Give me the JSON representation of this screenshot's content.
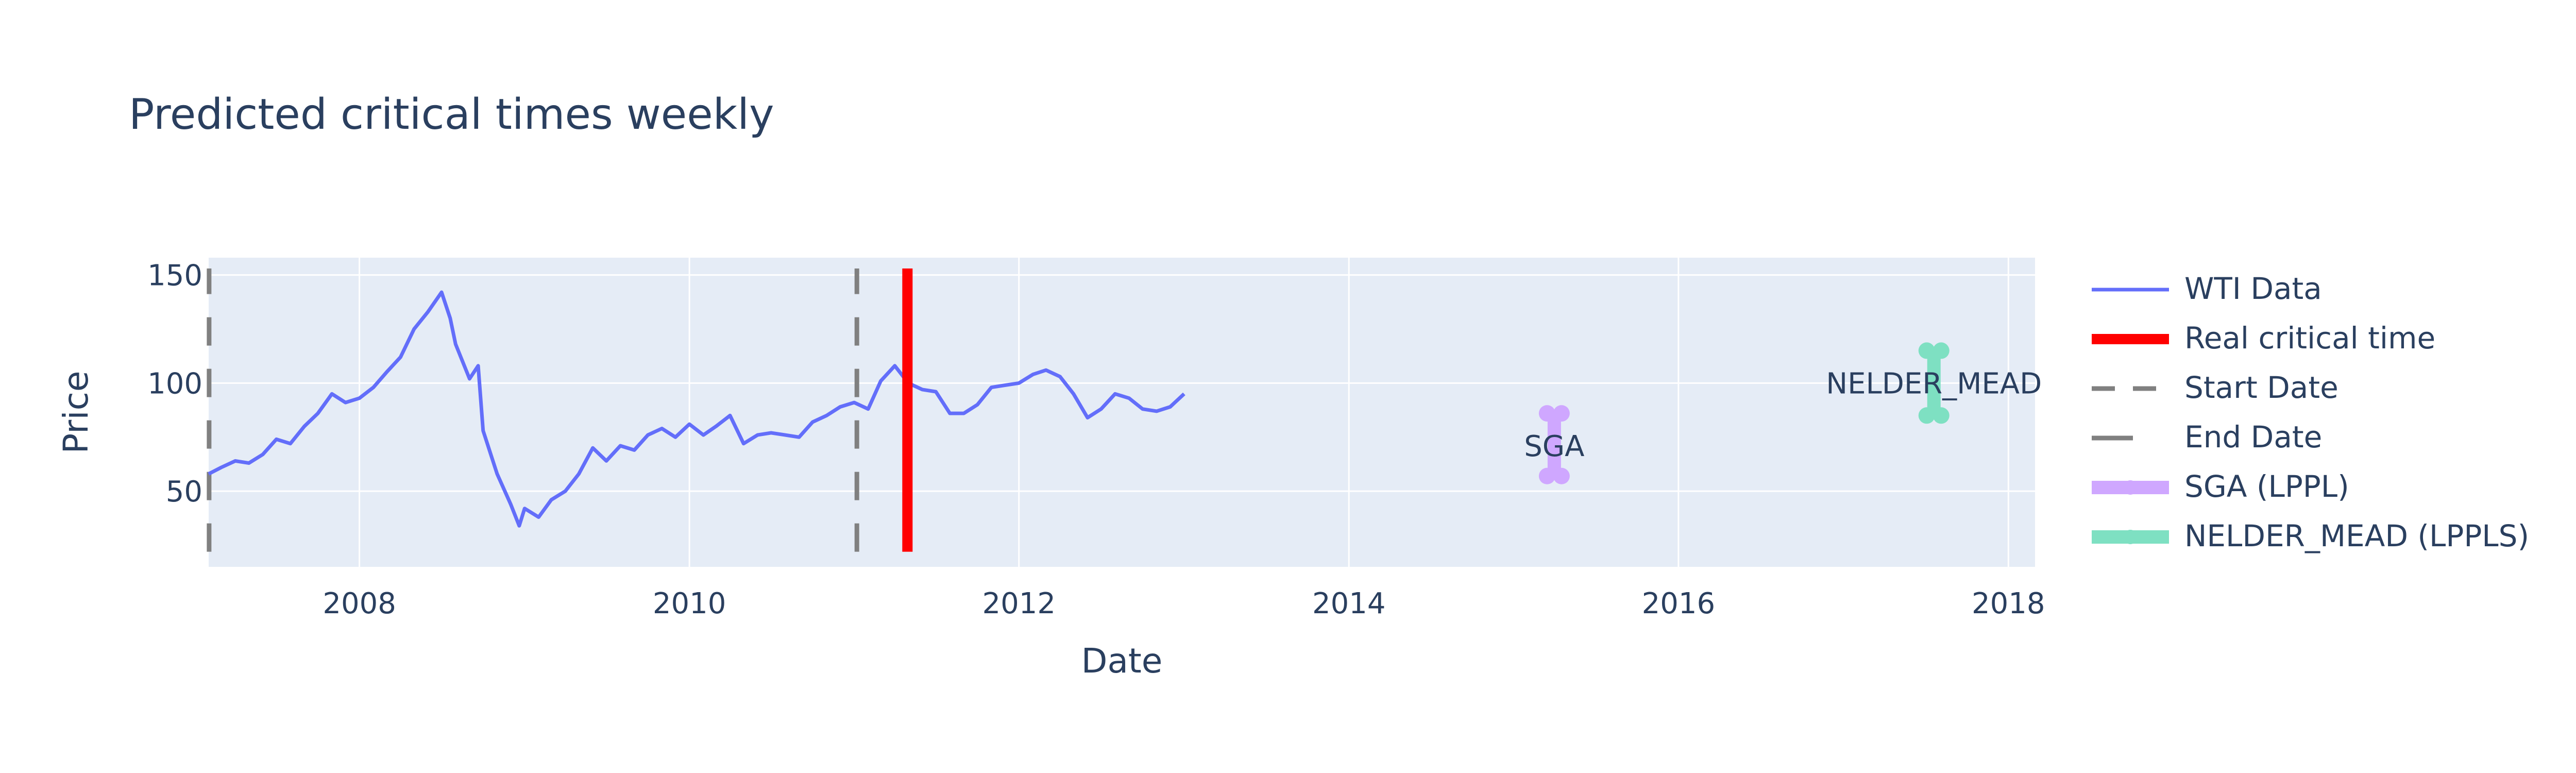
{
  "chart_data": {
    "type": "line",
    "title": "Predicted critical times weekly",
    "xlabel": "Date",
    "ylabel": "Price",
    "xlim": [
      "2007-02-01",
      "2018-03-01"
    ],
    "ylim": [
      15,
      158
    ],
    "x_ticks": [
      "2008",
      "2010",
      "2012",
      "2014",
      "2016",
      "2018"
    ],
    "y_ticks": [
      50,
      100,
      150
    ],
    "grid": true,
    "legend_position": "right",
    "colors": {
      "wti": "#636efa",
      "real": "#ff0000",
      "dates": "#808080",
      "sga": "#cfa7ff",
      "nelder": "#7ee0c2",
      "plot_bg": "#e5ecf6",
      "grid": "#ffffff",
      "text": "#2a3f5f"
    },
    "series": [
      {
        "name": "WTI Data",
        "points": [
          [
            "2007-02-01",
            58
          ],
          [
            "2007-03-01",
            61
          ],
          [
            "2007-04-01",
            64
          ],
          [
            "2007-05-01",
            63
          ],
          [
            "2007-06-01",
            67
          ],
          [
            "2007-07-01",
            74
          ],
          [
            "2007-08-01",
            72
          ],
          [
            "2007-09-01",
            80
          ],
          [
            "2007-10-01",
            86
          ],
          [
            "2007-11-01",
            95
          ],
          [
            "2007-12-01",
            91
          ],
          [
            "2008-01-01",
            93
          ],
          [
            "2008-02-01",
            98
          ],
          [
            "2008-03-01",
            105
          ],
          [
            "2008-04-01",
            112
          ],
          [
            "2008-05-01",
            125
          ],
          [
            "2008-06-01",
            133
          ],
          [
            "2008-07-01",
            142
          ],
          [
            "2008-07-20",
            130
          ],
          [
            "2008-08-01",
            118
          ],
          [
            "2008-09-01",
            102
          ],
          [
            "2008-09-20",
            108
          ],
          [
            "2008-10-01",
            78
          ],
          [
            "2008-11-01",
            58
          ],
          [
            "2008-12-01",
            44
          ],
          [
            "2008-12-20",
            34
          ],
          [
            "2009-01-01",
            42
          ],
          [
            "2009-02-01",
            38
          ],
          [
            "2009-03-01",
            46
          ],
          [
            "2009-04-01",
            50
          ],
          [
            "2009-05-01",
            58
          ],
          [
            "2009-06-01",
            70
          ],
          [
            "2009-07-01",
            64
          ],
          [
            "2009-08-01",
            71
          ],
          [
            "2009-09-01",
            69
          ],
          [
            "2009-10-01",
            76
          ],
          [
            "2009-11-01",
            79
          ],
          [
            "2009-12-01",
            75
          ],
          [
            "2010-01-01",
            81
          ],
          [
            "2010-02-01",
            76
          ],
          [
            "2010-03-01",
            80
          ],
          [
            "2010-04-01",
            85
          ],
          [
            "2010-05-01",
            72
          ],
          [
            "2010-06-01",
            76
          ],
          [
            "2010-07-01",
            77
          ],
          [
            "2010-08-01",
            76
          ],
          [
            "2010-09-01",
            75
          ],
          [
            "2010-10-01",
            82
          ],
          [
            "2010-11-01",
            85
          ],
          [
            "2010-12-01",
            89
          ],
          [
            "2011-01-01",
            91
          ],
          [
            "2011-02-01",
            88
          ],
          [
            "2011-03-01",
            101
          ],
          [
            "2011-04-01",
            108
          ],
          [
            "2011-05-01",
            100
          ],
          [
            "2011-06-01",
            97
          ],
          [
            "2011-07-01",
            96
          ],
          [
            "2011-08-01",
            86
          ],
          [
            "2011-09-01",
            86
          ],
          [
            "2011-10-01",
            90
          ],
          [
            "2011-11-01",
            98
          ],
          [
            "2011-12-01",
            99
          ],
          [
            "2012-01-01",
            100
          ],
          [
            "2012-02-01",
            104
          ],
          [
            "2012-03-01",
            106
          ],
          [
            "2012-04-01",
            103
          ],
          [
            "2012-05-01",
            95
          ],
          [
            "2012-06-01",
            84
          ],
          [
            "2012-07-01",
            88
          ],
          [
            "2012-08-01",
            95
          ],
          [
            "2012-09-01",
            93
          ],
          [
            "2012-10-01",
            88
          ],
          [
            "2012-11-01",
            87
          ],
          [
            "2012-12-01",
            89
          ],
          [
            "2013-01-01",
            95
          ]
        ]
      },
      {
        "name": "Real critical time",
        "x": "2011-04-29",
        "y_range": [
          22,
          153
        ]
      },
      {
        "name": "Start Date",
        "x": "2011-01-07",
        "y_range": [
          22,
          153
        ]
      },
      {
        "name": "End Date",
        "x": "2007-02-02",
        "y_range": [
          22,
          153
        ]
      },
      {
        "name": "SGA (LPPL)",
        "x": "2015-04-01",
        "y_range": [
          57,
          86
        ]
      },
      {
        "name": "NELDER_MEAD (LPPLS)",
        "x": "2017-07-20",
        "y_range": [
          85,
          115
        ]
      }
    ],
    "annotations": [
      {
        "text": "SGA",
        "x": "2015-04-01",
        "y": 71
      },
      {
        "text": "NELDER_MEAD",
        "x": "2017-07-20",
        "y": 100
      }
    ]
  }
}
